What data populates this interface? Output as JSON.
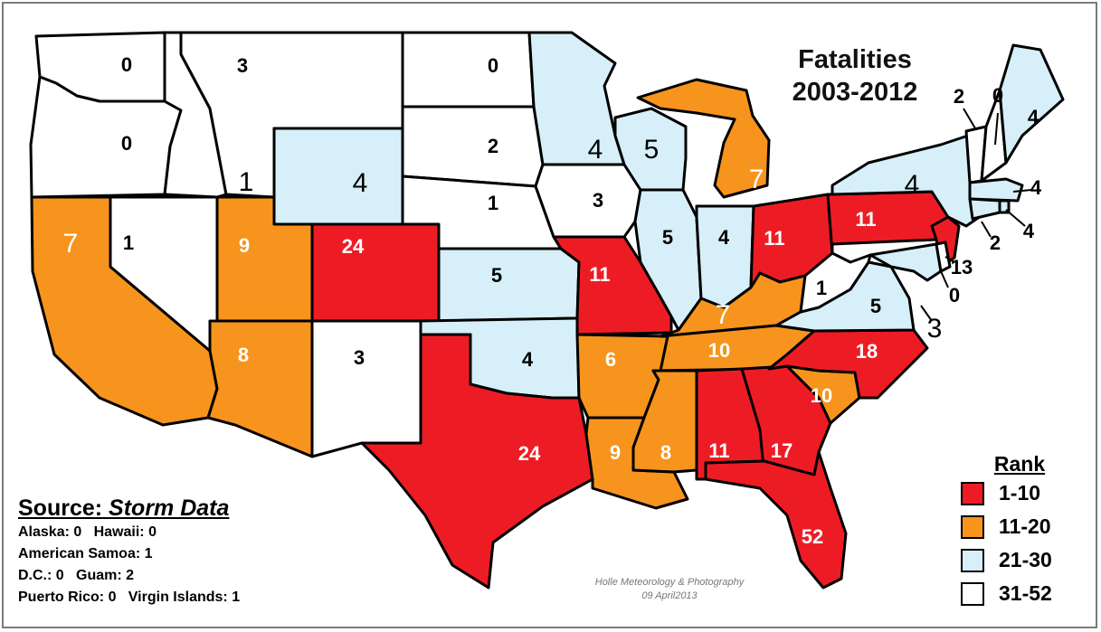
{
  "title_line1": "Fatalities",
  "title_line2": "2003-2012",
  "source": {
    "label": "Source:",
    "name": "Storm Data",
    "line1": "Alaska: 0   Hawaii: 0",
    "line2": "American Samoa: 1",
    "line3": "D.C.: 0   Guam: 2",
    "line4": "Puerto Rico: 0   Virgin Islands: 1"
  },
  "credit": {
    "line1": "Holle Meteorology & Photography",
    "line2": "09 April2013"
  },
  "legend": {
    "title": "Rank",
    "items": [
      {
        "label": "1-10",
        "color": "#ed1c24"
      },
      {
        "label": "11-20",
        "color": "#f7941d"
      },
      {
        "label": "21-30",
        "color": "#d6eff9"
      },
      {
        "label": "31-52",
        "color": "#ffffff"
      }
    ]
  },
  "rank_colors": {
    "red": "#ed1c24",
    "orange": "#f7941d",
    "blue": "#d6eff9",
    "white": "#ffffff"
  },
  "states": [
    {
      "name": "Washington",
      "fatalities": "0",
      "rank": "white"
    },
    {
      "name": "Oregon",
      "fatalities": "0",
      "rank": "white"
    },
    {
      "name": "California",
      "fatalities": "7",
      "rank": "orange"
    },
    {
      "name": "Nevada",
      "fatalities": "1",
      "rank": "white"
    },
    {
      "name": "Idaho",
      "fatalities": "1",
      "rank": "white"
    },
    {
      "name": "Montana",
      "fatalities": "3",
      "rank": "white"
    },
    {
      "name": "Wyoming",
      "fatalities": "4",
      "rank": "blue"
    },
    {
      "name": "Utah",
      "fatalities": "9",
      "rank": "orange"
    },
    {
      "name": "Arizona",
      "fatalities": "8",
      "rank": "orange"
    },
    {
      "name": "Colorado",
      "fatalities": "24",
      "rank": "red"
    },
    {
      "name": "New Mexico",
      "fatalities": "3",
      "rank": "white"
    },
    {
      "name": "North Dakota",
      "fatalities": "0",
      "rank": "white"
    },
    {
      "name": "South Dakota",
      "fatalities": "2",
      "rank": "white"
    },
    {
      "name": "Nebraska",
      "fatalities": "1",
      "rank": "white"
    },
    {
      "name": "Kansas",
      "fatalities": "5",
      "rank": "blue"
    },
    {
      "name": "Oklahoma",
      "fatalities": "4",
      "rank": "blue"
    },
    {
      "name": "Texas",
      "fatalities": "24",
      "rank": "red"
    },
    {
      "name": "Minnesota",
      "fatalities": "4",
      "rank": "blue"
    },
    {
      "name": "Iowa",
      "fatalities": "3",
      "rank": "white"
    },
    {
      "name": "Missouri",
      "fatalities": "11",
      "rank": "red"
    },
    {
      "name": "Arkansas",
      "fatalities": "6",
      "rank": "orange"
    },
    {
      "name": "Louisiana",
      "fatalities": "9",
      "rank": "orange"
    },
    {
      "name": "Wisconsin",
      "fatalities": "5",
      "rank": "blue"
    },
    {
      "name": "Illinois",
      "fatalities": "5",
      "rank": "blue"
    },
    {
      "name": "Michigan",
      "fatalities": "7",
      "rank": "orange"
    },
    {
      "name": "Indiana",
      "fatalities": "4",
      "rank": "blue"
    },
    {
      "name": "Ohio",
      "fatalities": "11",
      "rank": "red"
    },
    {
      "name": "Kentucky",
      "fatalities": "7",
      "rank": "orange"
    },
    {
      "name": "Tennessee",
      "fatalities": "10",
      "rank": "orange"
    },
    {
      "name": "Mississippi",
      "fatalities": "8",
      "rank": "orange"
    },
    {
      "name": "Alabama",
      "fatalities": "11",
      "rank": "red"
    },
    {
      "name": "Georgia",
      "fatalities": "17",
      "rank": "red"
    },
    {
      "name": "Florida",
      "fatalities": "52",
      "rank": "red"
    },
    {
      "name": "South Carolina",
      "fatalities": "10",
      "rank": "orange"
    },
    {
      "name": "North Carolina",
      "fatalities": "18",
      "rank": "red"
    },
    {
      "name": "Virginia",
      "fatalities": "5",
      "rank": "blue"
    },
    {
      "name": "West Virginia",
      "fatalities": "1",
      "rank": "white"
    },
    {
      "name": "Pennsylvania",
      "fatalities": "11",
      "rank": "red"
    },
    {
      "name": "New York",
      "fatalities": "4",
      "rank": "blue"
    },
    {
      "name": "New Jersey",
      "fatalities": "13",
      "rank": "red"
    },
    {
      "name": "Maryland",
      "fatalities": "3",
      "rank": "blue"
    },
    {
      "name": "Delaware",
      "fatalities": "0",
      "rank": "white"
    },
    {
      "name": "Vermont",
      "fatalities": "2",
      "rank": "white"
    },
    {
      "name": "New Hampshire",
      "fatalities": "0",
      "rank": "white"
    },
    {
      "name": "Maine",
      "fatalities": "4",
      "rank": "blue"
    },
    {
      "name": "Massachusetts",
      "fatalities": "4",
      "rank": "blue"
    },
    {
      "name": "Rhode Island",
      "fatalities": "4",
      "rank": "blue"
    },
    {
      "name": "Connecticut",
      "fatalities": "2",
      "rank": "blue"
    }
  ]
}
